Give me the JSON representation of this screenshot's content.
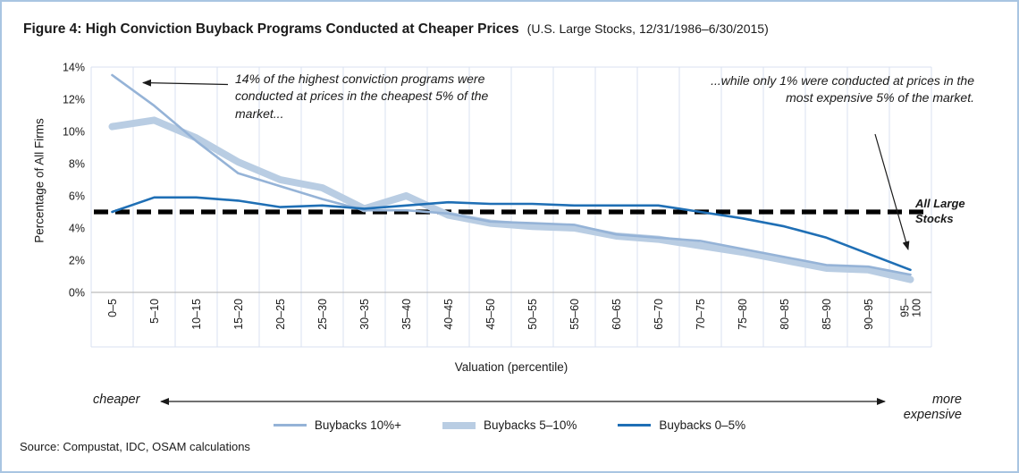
{
  "header": {
    "title": "Figure 4: High Conviction Buyback Programs Conducted at Cheaper Prices",
    "subtitle": "(U.S. Large Stocks, 12/31/1986–6/30/2015)"
  },
  "annotations": {
    "cheap_note": "14% of the highest conviction programs were conducted at prices in the cheapest 5% of the market...",
    "expensive_note": "...while only 1% were conducted at prices in the most expensive 5% of the market.",
    "x_left_label": "cheaper",
    "x_right_label": "more expensive"
  },
  "footer": {
    "source": "Source: Compustat, IDC, OSAM calculations"
  },
  "colors": {
    "border": "#a9c5e2",
    "gridline": "#d9e2f1",
    "axis": "#ababab",
    "text": "#1a1a1a"
  },
  "chart_data": {
    "type": "line",
    "title": "Figure 4: High Conviction Buyback Programs Conducted at Cheaper Prices (U.S. Large Stocks, 12/31/1986–6/30/2015)",
    "xlabel": "Valuation (percentile)",
    "ylabel": "Percentage of All Firms",
    "ylim": [
      0,
      14
    ],
    "yticks": [
      0,
      2,
      4,
      6,
      8,
      10,
      12,
      14
    ],
    "ytick_suffix": "%",
    "grid": "vertical",
    "legend_position": "bottom",
    "categories": [
      "0–5",
      "5–10",
      "10–15",
      "15–20",
      "20–25",
      "25–30",
      "30–35",
      "35–40",
      "40–45",
      "45–50",
      "50–55",
      "55–60",
      "60–65",
      "65–70",
      "70–75",
      "75–80",
      "80–85",
      "85–90",
      "90–95",
      "95–100"
    ],
    "series": [
      {
        "name": "Buybacks 10%+",
        "color": "#95b3d7",
        "stroke_width": 2.6,
        "values": [
          13.5,
          11.6,
          9.4,
          7.4,
          6.6,
          5.8,
          5.1,
          5.1,
          4.9,
          4.4,
          4.3,
          4.2,
          3.6,
          3.4,
          3.2,
          2.7,
          2.2,
          1.7,
          1.6,
          1.1
        ]
      },
      {
        "name": "Buybacks 5–10%",
        "color": "#b9cde3",
        "stroke_width": 8,
        "values": [
          10.3,
          10.7,
          9.6,
          8.1,
          7.0,
          6.5,
          5.2,
          6.0,
          4.8,
          4.3,
          4.1,
          4.0,
          3.5,
          3.3,
          2.9,
          2.5,
          2.0,
          1.5,
          1.4,
          0.8
        ]
      },
      {
        "name": "Buybacks 0–5%",
        "color": "#1f6fb5",
        "stroke_width": 2.6,
        "values": [
          5.0,
          5.9,
          5.9,
          5.7,
          5.3,
          5.4,
          5.2,
          5.4,
          5.6,
          5.5,
          5.5,
          5.4,
          5.4,
          5.4,
          5.0,
          4.6,
          4.1,
          3.4,
          2.4,
          1.4
        ]
      }
    ],
    "benchmark": {
      "name": "All Large Stocks",
      "value": 5,
      "color": "#000000",
      "style": "dashed",
      "stroke_width": 5.2
    }
  }
}
